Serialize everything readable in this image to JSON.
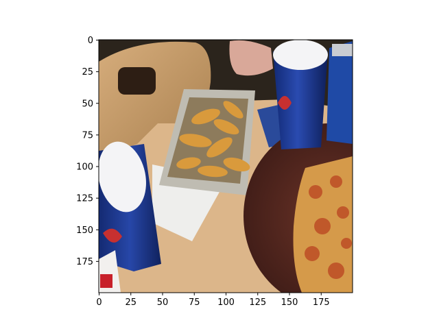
{
  "axes": {
    "x_ticks": [
      "0",
      "25",
      "50",
      "75",
      "100",
      "125",
      "150",
      "175"
    ],
    "y_ticks": [
      "0",
      "25",
      "50",
      "75",
      "100",
      "125",
      "150",
      "175"
    ],
    "x_tick_values": [
      0,
      25,
      50,
      75,
      100,
      125,
      150,
      175
    ],
    "y_tick_values": [
      0,
      25,
      50,
      75,
      100,
      125,
      150,
      175
    ],
    "xlim": [
      0,
      200
    ],
    "ylim": [
      200,
      0
    ]
  },
  "scene": {
    "table_color": "#dcb68a",
    "chair_color": "#caa070",
    "cup_blue": "#1f3a8e",
    "pizza_board": "#5a2c22",
    "pizza_crust": "#d59a4a",
    "pizza_topping": "#c0582a",
    "fries_color": "#d99a3c",
    "tray_color": "#bfbcb2"
  }
}
